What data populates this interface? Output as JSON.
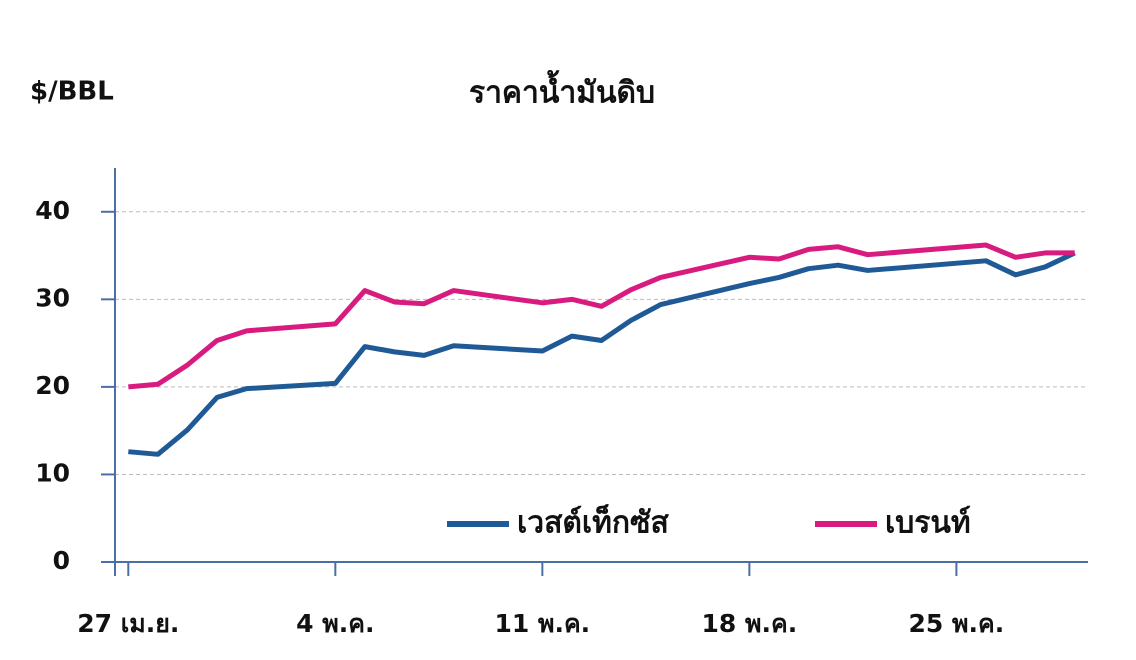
{
  "chart_data": {
    "type": "line",
    "title": "ราคาน้ำมันดิบ",
    "y_label": "$/BBL",
    "x": [
      0,
      1,
      2,
      3,
      4,
      7,
      8,
      9,
      10,
      11,
      14,
      15,
      16,
      17,
      18,
      21,
      22,
      23,
      24,
      25,
      29,
      30,
      31,
      32
    ],
    "xlim": [
      -0.45,
      32.45
    ],
    "xticks": [
      {
        "value": 0,
        "label": "27 เม.ย."
      },
      {
        "value": 7,
        "label": "4 พ.ค."
      },
      {
        "value": 14,
        "label": "11 พ.ค."
      },
      {
        "value": 21,
        "label": "18 พ.ค."
      },
      {
        "value": 28,
        "label": "25 พ.ค."
      }
    ],
    "ylim": [
      0,
      45
    ],
    "yticks": [
      0,
      10,
      20,
      30,
      40
    ],
    "grid": true,
    "legend": "bottom-right",
    "series": [
      {
        "name": "เวสต์เท็กซัส",
        "color": "#1f5a96",
        "values": [
          12.6,
          12.3,
          15.1,
          18.8,
          19.8,
          20.4,
          24.6,
          24.0,
          23.6,
          24.7,
          24.1,
          25.8,
          25.3,
          27.6,
          29.4,
          31.8,
          32.5,
          33.5,
          33.9,
          33.3,
          34.4,
          32.8,
          33.7,
          35.3
        ]
      },
      {
        "name": "เบรนท์",
        "color": "#d81b7f",
        "values": [
          20.0,
          20.3,
          22.5,
          25.3,
          26.4,
          27.2,
          31.0,
          29.7,
          29.5,
          31.0,
          29.6,
          30.0,
          29.2,
          31.1,
          32.5,
          34.8,
          34.6,
          35.7,
          36.0,
          35.1,
          36.2,
          34.8,
          35.3,
          35.3
        ]
      }
    ]
  }
}
